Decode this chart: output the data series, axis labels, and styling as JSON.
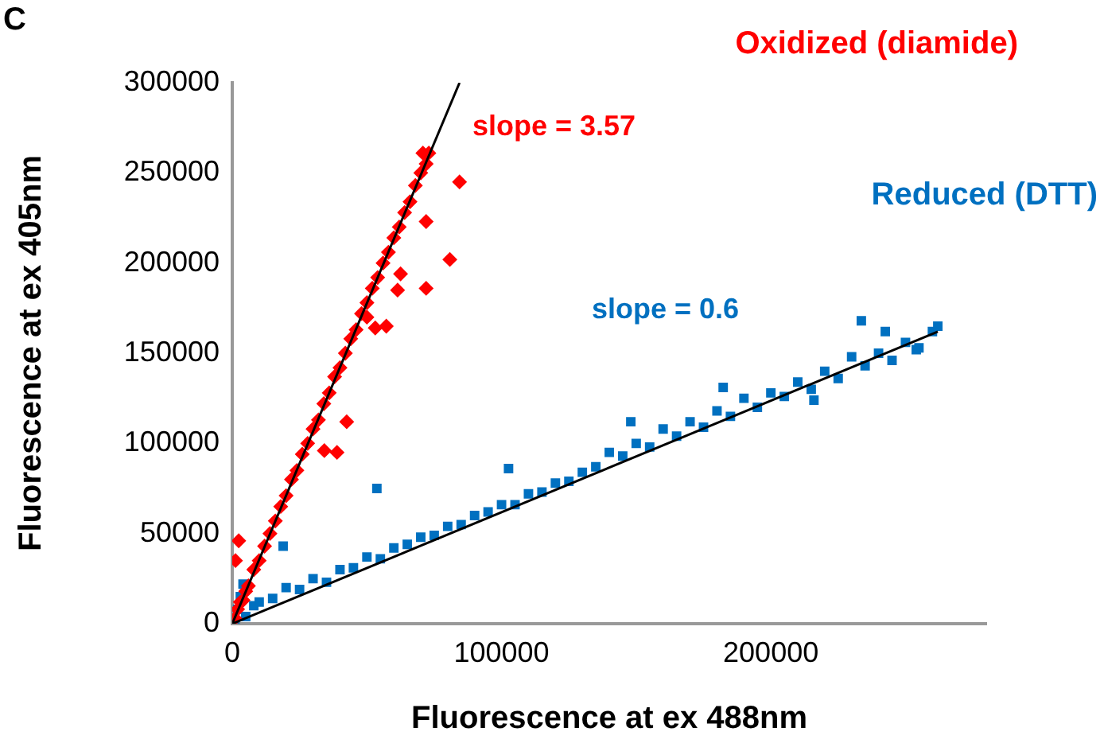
{
  "chart_data": {
    "type": "scatter",
    "title": "C",
    "xlabel": "Fluorescence at ex 488nm",
    "ylabel": "Fluorescence at ex 405nm",
    "xlim": [
      0,
      280000
    ],
    "xticks": [
      0,
      100000,
      200000
    ],
    "ylim": [
      0,
      300000
    ],
    "yticks": [
      0,
      50000,
      100000,
      150000,
      200000,
      250000,
      300000
    ],
    "grid": false,
    "legend": false,
    "series": [
      {
        "name": "Oxidized (diamide)",
        "color": "#ff0000",
        "marker": "diamond",
        "x": [
          1000,
          2000,
          3000,
          4000,
          5000,
          6000,
          8000,
          10000,
          12000,
          14000,
          16000,
          18000,
          20000,
          22000,
          24000,
          26000,
          28000,
          30000,
          32000,
          34000,
          36000,
          38000,
          40000,
          42000,
          44000,
          46000,
          48000,
          50000,
          52000,
          54000,
          56000,
          58000,
          60000,
          62000,
          64000,
          66000,
          68000,
          70000,
          70800,
          73000,
          72000,
          50000,
          84400,
          80800,
          72000,
          72000,
          62500,
          61400,
          57200,
          53100,
          42500,
          38900,
          34200,
          2400,
          1200
        ],
        "values": [
          3000,
          8000,
          12000,
          13000,
          18000,
          21000,
          30000,
          35000,
          43000,
          50000,
          57000,
          65000,
          71000,
          80000,
          85000,
          94000,
          100000,
          108000,
          113000,
          122000,
          128000,
          137000,
          142000,
          150000,
          158000,
          163000,
          172000,
          178000,
          186000,
          192000,
          200000,
          206000,
          214000,
          220000,
          228000,
          234000,
          243000,
          250000,
          261000,
          261000,
          255000,
          170000,
          245000,
          202000,
          186000,
          223000,
          194000,
          185000,
          165000,
          164000,
          112000,
          95000,
          96000,
          46000,
          35000
        ]
      },
      {
        "name": "Reduced (DTT)",
        "color": "#0070c0",
        "marker": "square",
        "x": [
          1000,
          2000,
          3000,
          4000,
          5000,
          8000,
          10000,
          15000,
          20000,
          25000,
          30000,
          35000,
          40000,
          45000,
          50000,
          55000,
          60000,
          65000,
          70000,
          75000,
          80000,
          85000,
          90000,
          95000,
          100000,
          105000,
          110000,
          115000,
          120000,
          125000,
          130000,
          135000,
          140000,
          145000,
          150000,
          155000,
          160000,
          165000,
          170000,
          175000,
          180000,
          185000,
          190000,
          195000,
          200000,
          205000,
          210000,
          215000,
          220000,
          225000,
          230000,
          235000,
          240000,
          245000,
          250000,
          255000,
          260000,
          262000,
          233600,
          242500,
          148000,
          182300,
          216000,
          254000,
          53700,
          102600,
          18900
        ],
        "values": [
          2000,
          8000,
          15000,
          22000,
          4000,
          10000,
          12000,
          14000,
          20000,
          19000,
          25000,
          23000,
          30000,
          31000,
          37000,
          36000,
          42000,
          44000,
          48000,
          49000,
          54000,
          55000,
          60000,
          62000,
          66000,
          66000,
          72000,
          73000,
          78000,
          79000,
          84000,
          87000,
          95000,
          93000,
          100000,
          98000,
          108000,
          104000,
          112000,
          109000,
          118000,
          115000,
          125000,
          120000,
          128000,
          126000,
          134000,
          130000,
          140000,
          136000,
          148000,
          143000,
          150000,
          146000,
          156000,
          153000,
          162000,
          165000,
          168000,
          162000,
          112000,
          131000,
          124000,
          152000,
          75000,
          86000,
          43000
        ]
      },
      {
        "type": "line",
        "color": "#000000",
        "marker": "none",
        "x": [
          0,
          84400
        ],
        "values": [
          0,
          300000
        ]
      },
      {
        "type": "line",
        "color": "#000000",
        "marker": "none",
        "x": [
          0,
          262000
        ],
        "values": [
          0,
          162000
        ]
      }
    ],
    "annotations": [
      "slope = 3.57",
      "slope = 0.6"
    ]
  }
}
